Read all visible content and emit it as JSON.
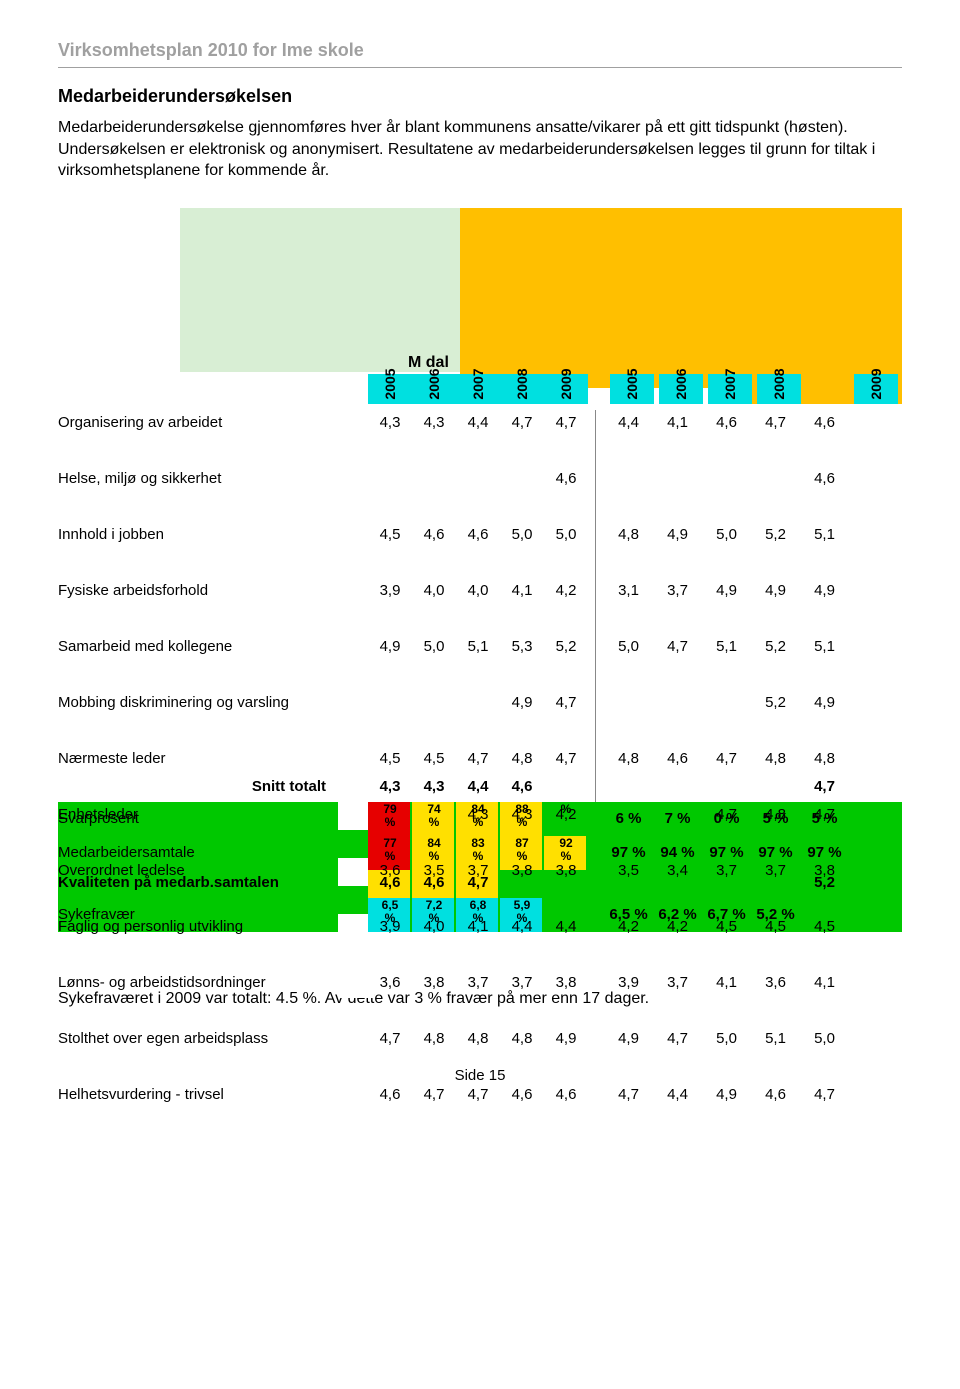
{
  "doc_header": "Virksomhetsplan 2010 for Ime skole",
  "section_title": "Medarbeiderundersøkelsen",
  "intro_text": "Medarbeiderundersøkelse gjennomføres hver år blant kommunens ansatte/vikarer på ett gitt tidspunkt (høsten). Undersøkelsen er elektronisk og anonymisert. Resultatene av medarbeiderundersøkelsen legges til grunn for tiltak i virksomhetsplanene for kommende år.",
  "mdal_label": "M dal",
  "years_left": [
    "2005",
    "2006",
    "2007",
    "2008",
    "2009"
  ],
  "years_right": [
    "2005",
    "2006",
    "2007",
    "2008",
    "2009"
  ],
  "year_positions_left": [
    310,
    354,
    398,
    442,
    486
  ],
  "year_positions_right": [
    552,
    601,
    650,
    699,
    796
  ],
  "colors": {
    "green_light": "#d8eed4",
    "orange": "#ffbf00",
    "cyan": "#00e0e0",
    "green": "#00c800",
    "red": "#e60000",
    "yellow": "#ffe000",
    "grey_text": "#a0a0a0"
  },
  "rows": [
    {
      "label": "Organisering av arbeidet",
      "cells": [
        "4,3",
        "4,3",
        "4,4",
        "4,7",
        "4,7",
        "4,4",
        "4,1",
        "4,6",
        "4,7",
        "4,6"
      ]
    },
    {
      "label": "Helse, miljø og sikkerhet",
      "cells": [
        "",
        "",
        "",
        "",
        "4,6",
        "",
        "",
        "",
        "",
        "4,6"
      ]
    },
    {
      "label": "Innhold i jobben",
      "cells": [
        "4,5",
        "4,6",
        "4,6",
        "5,0",
        "5,0",
        "4,8",
        "4,9",
        "5,0",
        "5,2",
        "5,1"
      ]
    },
    {
      "label": "Fysiske arbeidsforhold",
      "cells": [
        "3,9",
        "4,0",
        "4,0",
        "4,1",
        "4,2",
        "3,1",
        "3,7",
        "4,9",
        "4,9",
        "4,9"
      ]
    },
    {
      "label": "Samarbeid med kollegene",
      "cells": [
        "4,9",
        "5,0",
        "5,1",
        "5,3",
        "5,2",
        "5,0",
        "4,7",
        "5,1",
        "5,2",
        "5,1"
      ]
    },
    {
      "label": "Mobbing diskriminering og varsling",
      "cells": [
        "",
        "",
        "",
        "4,9",
        "4,7",
        "",
        "",
        "",
        "5,2",
        "4,9"
      ]
    },
    {
      "label": "Nærmeste leder",
      "cells": [
        "4,5",
        "4,5",
        "4,7",
        "4,8",
        "4,7",
        "4,8",
        "4,6",
        "4,7",
        "4,8",
        "4,8"
      ]
    },
    {
      "label": "Enhetsleder",
      "cells": [
        "",
        "",
        "4,3",
        "4,3",
        "4,2",
        "",
        "",
        "4,7",
        "4,8",
        "4,7"
      ]
    },
    {
      "label": "Overordnet ledelse",
      "cells": [
        "3,6",
        "3,5",
        "3,7",
        "3,8",
        "3,8",
        "3,5",
        "3,4",
        "3,7",
        "3,7",
        "3,8"
      ]
    },
    {
      "label": "Faglig og personlig utvikling",
      "cells": [
        "3,9",
        "4,0",
        "4,1",
        "4,4",
        "4,4",
        "4,2",
        "4,2",
        "4,5",
        "4,5",
        "4,5"
      ]
    },
    {
      "label": "Lønns- og arbeidstidsordninger",
      "cells": [
        "3,6",
        "3,8",
        "3,7",
        "3,7",
        "3,8",
        "3,9",
        "3,7",
        "4,1",
        "3,6",
        "4,1"
      ]
    },
    {
      "label": "Stolthet over egen arbeidsplass",
      "cells": [
        "4,7",
        "4,8",
        "4,8",
        "4,8",
        "4,9",
        "4,9",
        "4,7",
        "5,0",
        "5,1",
        "5,0"
      ]
    },
    {
      "label": "Helhetsvurdering - trivsel",
      "cells": [
        "4,6",
        "4,7",
        "4,7",
        "4,6",
        "4,6",
        "4,7",
        "4,4",
        "4,9",
        "4,6",
        "4,7"
      ]
    }
  ],
  "snitt": {
    "label": "Snitt totalt",
    "cells": [
      "4,3",
      "4,3",
      "4,4",
      "4,6",
      "",
      "",
      "",
      "",
      "",
      "4,7"
    ]
  },
  "svarprosent": {
    "label": "Svarprosent",
    "top": [
      "79",
      "74",
      "84",
      "88",
      ""
    ],
    "bot": [
      "%",
      "%",
      "%",
      "%",
      "%"
    ],
    "right": [
      "6 %",
      "7 %",
      "0 %",
      "5 %",
      "5 %"
    ]
  },
  "medarbeidersamtale": {
    "label": "Medarbeidersamtale",
    "top": [
      "77",
      "84",
      "83",
      "87",
      "92"
    ],
    "bot": [
      "%",
      "%",
      "%",
      "%",
      "%"
    ],
    "right": [
      "97 %",
      "94 %",
      "97 %",
      "97 %",
      "97 %"
    ]
  },
  "kvalitet": {
    "label": "Kvaliteten på medarb.samtalen",
    "cells": [
      "4,6",
      "4,6",
      "4,7",
      "",
      "",
      "",
      "",
      "",
      "",
      "5,2"
    ]
  },
  "sykefravaer": {
    "label": "Sykefravær",
    "top": [
      "6,5",
      "7,2",
      "6,8",
      "5,9"
    ],
    "bot": [
      "%",
      "%",
      "%",
      "%"
    ],
    "right": [
      "6,5 %",
      "6,2 %",
      "6,7 %",
      "5,2 %",
      ""
    ]
  },
  "closing_text": "Sykefraværet i 2009 var totalt: 4.5 %. Av dette var 3 % fravær på mer enn 17 dager.",
  "page_footer": "Side 15"
}
